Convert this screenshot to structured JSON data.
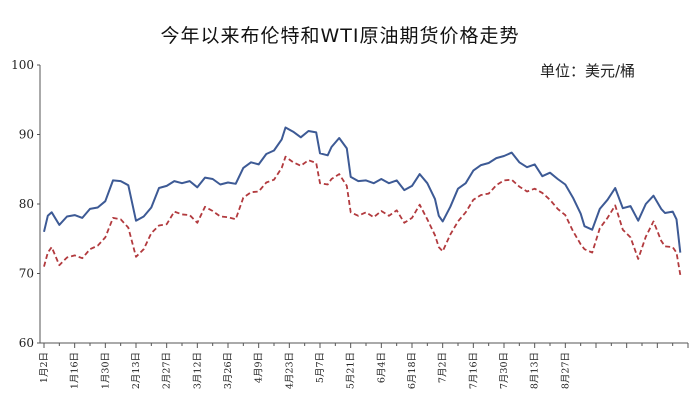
{
  "chart_data": {
    "type": "line",
    "title": "今年以来布伦特和WTI原油期货价格走势",
    "unit_label": "单位：美元/桶",
    "ylim": [
      60,
      100
    ],
    "y_ticks": [
      "60",
      "70",
      "80",
      "90",
      "100"
    ],
    "x_ticks": [
      "1月2日",
      "1月16日",
      "1月30日",
      "2月13日",
      "2月27日",
      "3月12日",
      "3月26日",
      "4月9日",
      "4月23日",
      "5月7日",
      "5月21日",
      "6月4日",
      "6月18日",
      "7月2日",
      "7月16日",
      "7月30日",
      "8月13日",
      "8月27日"
    ],
    "grid": false,
    "legend": "none",
    "series": [
      {
        "color": "#3d5a95",
        "style": "solid",
        "values": [
          [
            0,
            76.0
          ],
          [
            1,
            78.3
          ],
          [
            2,
            78.8
          ],
          [
            4,
            77.0
          ],
          [
            6,
            78.2
          ],
          [
            8,
            78.4
          ],
          [
            10,
            78.0
          ],
          [
            12,
            79.3
          ],
          [
            14,
            79.5
          ],
          [
            16,
            80.4
          ],
          [
            18,
            83.4
          ],
          [
            20,
            83.3
          ],
          [
            22,
            82.7
          ],
          [
            24,
            77.6
          ],
          [
            26,
            78.2
          ],
          [
            28,
            79.5
          ],
          [
            30,
            82.3
          ],
          [
            32,
            82.6
          ],
          [
            34,
            83.3
          ],
          [
            36,
            83.0
          ],
          [
            38,
            83.3
          ],
          [
            40,
            82.4
          ],
          [
            42,
            83.8
          ],
          [
            44,
            83.6
          ],
          [
            46,
            82.8
          ],
          [
            48,
            83.1
          ],
          [
            50,
            82.9
          ],
          [
            52,
            85.2
          ],
          [
            54,
            86.0
          ],
          [
            56,
            85.7
          ],
          [
            58,
            87.2
          ],
          [
            60,
            87.7
          ],
          [
            62,
            89.3
          ],
          [
            63,
            91.0
          ],
          [
            65,
            90.4
          ],
          [
            67,
            89.6
          ],
          [
            69,
            90.5
          ],
          [
            71,
            90.3
          ],
          [
            72,
            87.3
          ],
          [
            74,
            87.0
          ],
          [
            75,
            88.2
          ],
          [
            77,
            89.5
          ],
          [
            79,
            88.0
          ],
          [
            80,
            83.9
          ],
          [
            82,
            83.3
          ],
          [
            84,
            83.4
          ],
          [
            86,
            83.0
          ],
          [
            88,
            83.6
          ],
          [
            90,
            83.0
          ],
          [
            92,
            83.4
          ],
          [
            94,
            82.0
          ],
          [
            96,
            82.6
          ],
          [
            98,
            84.3
          ],
          [
            100,
            83.0
          ],
          [
            102,
            80.7
          ],
          [
            103,
            78.3
          ],
          [
            104,
            77.5
          ],
          [
            106,
            79.6
          ],
          [
            108,
            82.2
          ],
          [
            110,
            83.0
          ],
          [
            112,
            84.8
          ],
          [
            114,
            85.6
          ],
          [
            116,
            85.9
          ],
          [
            118,
            86.6
          ],
          [
            120,
            86.9
          ],
          [
            122,
            87.4
          ],
          [
            124,
            86.0
          ],
          [
            126,
            85.3
          ],
          [
            128,
            85.7
          ],
          [
            130,
            84.0
          ],
          [
            132,
            84.5
          ],
          [
            134,
            83.6
          ],
          [
            136,
            82.8
          ],
          [
            138,
            80.9
          ],
          [
            140,
            78.6
          ],
          [
            141,
            76.8
          ],
          [
            143,
            76.3
          ],
          [
            145,
            79.3
          ],
          [
            147,
            80.6
          ],
          [
            149,
            82.3
          ],
          [
            151,
            79.4
          ],
          [
            153,
            79.7
          ],
          [
            155,
            77.6
          ],
          [
            157,
            80.0
          ],
          [
            159,
            81.2
          ],
          [
            161,
            79.3
          ],
          [
            162,
            78.7
          ],
          [
            164,
            78.9
          ],
          [
            165,
            77.8
          ],
          [
            166,
            73.0
          ]
        ]
      },
      {
        "color": "#b23a3e",
        "style": "dashed",
        "values": [
          [
            0,
            71.0
          ],
          [
            1,
            73.0
          ],
          [
            2,
            73.8
          ],
          [
            4,
            71.2
          ],
          [
            6,
            72.3
          ],
          [
            8,
            72.6
          ],
          [
            10,
            72.2
          ],
          [
            12,
            73.5
          ],
          [
            14,
            74.0
          ],
          [
            16,
            75.2
          ],
          [
            18,
            78.0
          ],
          [
            20,
            77.8
          ],
          [
            22,
            76.6
          ],
          [
            24,
            72.4
          ],
          [
            26,
            73.5
          ],
          [
            28,
            75.8
          ],
          [
            30,
            76.9
          ],
          [
            32,
            77.1
          ],
          [
            34,
            78.9
          ],
          [
            36,
            78.5
          ],
          [
            38,
            78.4
          ],
          [
            40,
            77.3
          ],
          [
            42,
            79.6
          ],
          [
            44,
            79.0
          ],
          [
            46,
            78.2
          ],
          [
            48,
            78.1
          ],
          [
            50,
            77.8
          ],
          [
            52,
            80.9
          ],
          [
            54,
            81.7
          ],
          [
            56,
            81.8
          ],
          [
            58,
            83.1
          ],
          [
            60,
            83.5
          ],
          [
            62,
            85.2
          ],
          [
            63,
            86.8
          ],
          [
            65,
            86.0
          ],
          [
            67,
            85.5
          ],
          [
            69,
            86.3
          ],
          [
            71,
            85.9
          ],
          [
            72,
            83.0
          ],
          [
            74,
            82.8
          ],
          [
            75,
            83.6
          ],
          [
            77,
            84.3
          ],
          [
            79,
            82.6
          ],
          [
            80,
            78.8
          ],
          [
            82,
            78.3
          ],
          [
            84,
            78.8
          ],
          [
            86,
            78.1
          ],
          [
            88,
            79.0
          ],
          [
            90,
            78.3
          ],
          [
            92,
            79.1
          ],
          [
            94,
            77.3
          ],
          [
            96,
            78.0
          ],
          [
            98,
            79.9
          ],
          [
            100,
            77.8
          ],
          [
            102,
            75.5
          ],
          [
            103,
            73.8
          ],
          [
            104,
            73.2
          ],
          [
            106,
            75.6
          ],
          [
            108,
            77.5
          ],
          [
            110,
            78.8
          ],
          [
            112,
            80.6
          ],
          [
            114,
            81.3
          ],
          [
            116,
            81.5
          ],
          [
            118,
            82.7
          ],
          [
            120,
            83.4
          ],
          [
            122,
            83.5
          ],
          [
            124,
            82.5
          ],
          [
            126,
            81.8
          ],
          [
            128,
            82.2
          ],
          [
            130,
            81.6
          ],
          [
            132,
            80.6
          ],
          [
            134,
            79.3
          ],
          [
            136,
            78.4
          ],
          [
            138,
            76.1
          ],
          [
            140,
            74.2
          ],
          [
            141,
            73.5
          ],
          [
            143,
            73.0
          ],
          [
            145,
            76.5
          ],
          [
            147,
            78.0
          ],
          [
            149,
            79.8
          ],
          [
            151,
            76.3
          ],
          [
            153,
            75.2
          ],
          [
            155,
            72.1
          ],
          [
            157,
            75.3
          ],
          [
            159,
            77.5
          ],
          [
            161,
            74.7
          ],
          [
            162,
            73.9
          ],
          [
            164,
            73.8
          ],
          [
            165,
            73.0
          ],
          [
            166,
            69.8
          ]
        ]
      }
    ]
  }
}
